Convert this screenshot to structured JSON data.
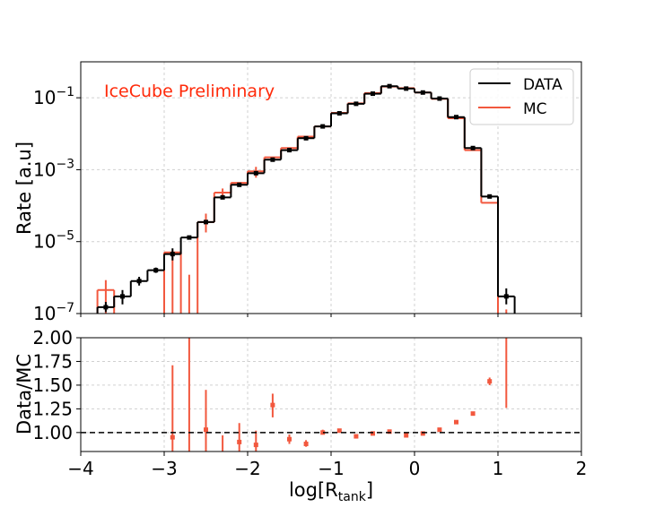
{
  "chart_data": [
    {
      "panel": "top",
      "type": "histogram",
      "ylabel": "Rate [a.u]",
      "yscale": "log",
      "xlim": [
        -4,
        2
      ],
      "ylim": [
        1e-07,
        1
      ],
      "yticks": [
        {
          "v": 1e-07,
          "exp": "−7"
        },
        {
          "v": 1e-05,
          "exp": "−5"
        },
        {
          "v": 0.001,
          "exp": "−3"
        },
        {
          "v": 0.1,
          "exp": "−1"
        }
      ],
      "grid": true,
      "annotation": "IceCube Preliminary",
      "legend": {
        "position": "top-right",
        "entries": [
          "DATA",
          "MC"
        ]
      },
      "bin_edges": [
        -3.8,
        -3.6,
        -3.4,
        -3.2,
        -3.0,
        -2.8,
        -2.6,
        -2.4,
        -2.2,
        -2.0,
        -1.8,
        -1.6,
        -1.4,
        -1.2,
        -1.0,
        -0.8,
        -0.6,
        -0.4,
        -0.2,
        0.0,
        0.2,
        0.4,
        0.6,
        0.8,
        1.0,
        1.2
      ],
      "series": [
        {
          "name": "DATA",
          "values": [
            1.5e-07,
            3e-07,
            8e-07,
            1.6e-06,
            4.5e-06,
            1.3e-05,
            3.5e-05,
            0.00017,
            0.00038,
            0.0008,
            0.0019,
            0.0035,
            0.0075,
            0.016,
            0.037,
            0.068,
            0.13,
            0.21,
            0.18,
            0.14,
            0.095,
            0.029,
            0.004,
            0.00018,
            3e-07
          ],
          "errors": [
            [
              1.1e-07,
              2.1e-07
            ],
            [
              1.8e-07,
              4.5e-07
            ],
            [
              6e-07,
              1.05e-06
            ],
            [
              1.35e-06,
              1.9e-06
            ],
            [
              3e-06,
              6.5e-06
            ],
            [
              1.15e-05,
              1.45e-05
            ],
            null,
            null,
            null,
            null,
            null,
            null,
            null,
            null,
            null,
            null,
            null,
            null,
            null,
            null,
            null,
            null,
            null,
            null,
            [
              1.8e-07,
              5e-07
            ]
          ]
        },
        {
          "name": "MC",
          "values": [
            4.5e-07,
            null,
            null,
            null,
            5e-06,
            null,
            3.5e-05,
            0.00023,
            0.00043,
            0.0009,
            0.0022,
            0.004,
            0.0083,
            0.016,
            0.038,
            0.07,
            0.135,
            0.205,
            0.185,
            0.14,
            0.093,
            0.027,
            0.0035,
            0.00012,
            null
          ],
          "errors": [
            [
              1e-07,
              8.5e-07
            ],
            [
              1e-07,
              1e-07
            ],
            [
              1e-07,
              1e-07
            ],
            [
              1e-07,
              1e-07
            ],
            [
              1e-07,
              5.5e-06
            ],
            [
              1e-07,
              1.2e-06
            ],
            [
              1.8e-05,
              6e-05
            ],
            [
              0.00015,
              0.0003
            ],
            null,
            [
              0.0006,
              0.0012
            ],
            null,
            null,
            null,
            null,
            null,
            null,
            null,
            null,
            null,
            null,
            null,
            null,
            null,
            null,
            [
              1e-07,
              1.3e-07
            ]
          ]
        }
      ]
    },
    {
      "panel": "bottom",
      "type": "scatter",
      "xlabel_main": "log[R",
      "xlabel_sub": "tank",
      "xlabel_end": "]",
      "ylabel": "Data/MC",
      "xlim": [
        -4,
        2
      ],
      "ylim": [
        0.8,
        2.0
      ],
      "xticks": [
        {
          "v": -4,
          "label": "−4"
        },
        {
          "v": -3,
          "label": "−3"
        },
        {
          "v": -2,
          "label": "−2"
        },
        {
          "v": -1,
          "label": "−1"
        },
        {
          "v": 0,
          "label": "0"
        },
        {
          "v": 1,
          "label": "1"
        },
        {
          "v": 2,
          "label": "2"
        }
      ],
      "yticks": [
        {
          "v": 1.0,
          "label": "1.00"
        },
        {
          "v": 1.25,
          "label": "1.25"
        },
        {
          "v": 1.5,
          "label": "1.50"
        },
        {
          "v": 1.75,
          "label": "1.75"
        },
        {
          "v": 2.0,
          "label": "2.00"
        }
      ],
      "reference_line": 1.0,
      "grid": true,
      "points": [
        {
          "x": -2.9,
          "y": 0.95,
          "lo": 0.8,
          "hi": 1.71
        },
        {
          "x": -2.7,
          "y": null,
          "lo": 0.8,
          "hi": 2.0
        },
        {
          "x": -2.5,
          "y": 1.03,
          "lo": 0.8,
          "hi": 1.45
        },
        {
          "x": -2.3,
          "y": null,
          "lo": 0.8,
          "hi": 0.97
        },
        {
          "x": -2.1,
          "y": 0.9,
          "lo": 0.8,
          "hi": 1.1
        },
        {
          "x": -1.9,
          "y": 0.87,
          "lo": 0.8,
          "hi": 1.02
        },
        {
          "x": -1.7,
          "y": 1.29,
          "lo": 1.16,
          "hi": 1.41
        },
        {
          "x": -1.5,
          "y": 0.93,
          "lo": 0.88,
          "hi": 0.98
        },
        {
          "x": -1.3,
          "y": 0.88,
          "lo": 0.85,
          "hi": 0.92
        },
        {
          "x": -1.1,
          "y": 1.0,
          "lo": 0.98,
          "hi": 1.03
        },
        {
          "x": -0.9,
          "y": 1.02,
          "lo": 1.0,
          "hi": 1.04
        },
        {
          "x": -0.7,
          "y": 0.96,
          "lo": 0.95,
          "hi": 0.97
        },
        {
          "x": -0.5,
          "y": 0.99,
          "lo": 0.98,
          "hi": 1.0
        },
        {
          "x": -0.3,
          "y": 1.01,
          "lo": 1.0,
          "hi": 1.02
        },
        {
          "x": -0.1,
          "y": 0.97,
          "lo": 0.96,
          "hi": 0.98
        },
        {
          "x": 0.1,
          "y": 0.99,
          "lo": 0.98,
          "hi": 1.0
        },
        {
          "x": 0.3,
          "y": 1.03,
          "lo": 1.02,
          "hi": 1.04
        },
        {
          "x": 0.5,
          "y": 1.11,
          "lo": 1.1,
          "hi": 1.12
        },
        {
          "x": 0.7,
          "y": 1.2,
          "lo": 1.19,
          "hi": 1.21
        },
        {
          "x": 0.9,
          "y": 1.54,
          "lo": 1.5,
          "hi": 1.58
        },
        {
          "x": 1.1,
          "y": null,
          "lo": 1.26,
          "hi": 2.0
        }
      ]
    }
  ],
  "colors": {
    "data": "#000000",
    "mc": "#f2583e",
    "annotation": "#ff2a0a",
    "grid": "#d0d0d0"
  }
}
